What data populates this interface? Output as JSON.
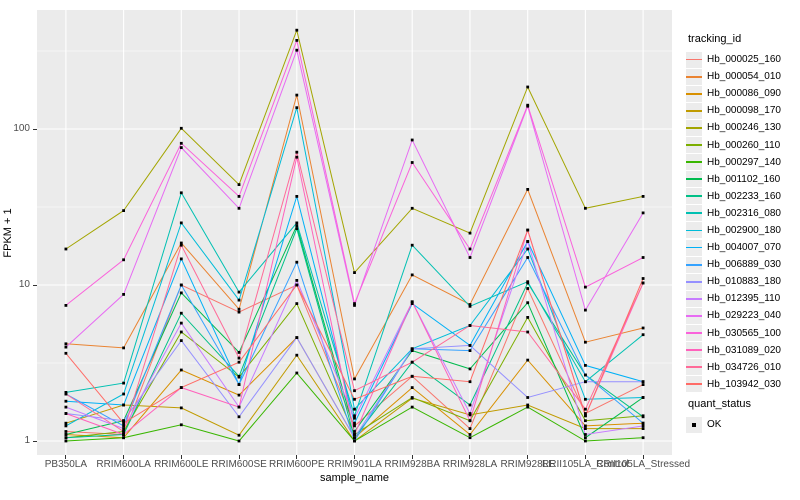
{
  "chart_data": {
    "type": "line",
    "title": "",
    "xlabel": "sample_name",
    "ylabel": "FPKM + 1",
    "y_scale": "log10",
    "y_ticks": [
      1,
      10,
      100
    ],
    "y_minor_ticks": [
      3.162,
      31.62,
      316.2
    ],
    "ylim": [
      1,
      578
    ],
    "panel_bg": "#EBEBEB",
    "grid_color": "#FFFFFF",
    "point_shape": "black-square",
    "categories": [
      "PB350LA",
      "RRIM600LA",
      "RRIM600LE",
      "RRIM600SE",
      "RRIM600PE",
      "RRIM901LA",
      "RRIM928BA",
      "RRIM928LA",
      "RRIM928LE",
      "RRII105LA_Control",
      "RRII105LA_Stressed"
    ],
    "series": [
      {
        "name": "Hb_000025_160",
        "color": "#F8766D",
        "values": [
          1.15,
          1.1,
          10.0,
          6.7,
          10.0,
          1.25,
          2.6,
          1.2,
          9.5,
          1.5,
          2.3
        ]
      },
      {
        "name": "Hb_000054_010",
        "color": "#EA8331",
        "values": [
          4.2,
          3.95,
          18.6,
          7.0,
          165,
          2.5,
          11.6,
          7.5,
          41,
          4.3,
          5.3
        ]
      },
      {
        "name": "Hb_000086_090",
        "color": "#D89000",
        "values": [
          1.1,
          1.05,
          2.85,
          1.97,
          4.6,
          1.05,
          2.2,
          1.1,
          3.3,
          1.25,
          1.3
        ]
      },
      {
        "name": "Hb_000098_170",
        "color": "#C09B00",
        "values": [
          1.3,
          1.7,
          1.63,
          1.09,
          3.55,
          1.0,
          1.88,
          1.47,
          1.7,
          1.2,
          1.2
        ]
      },
      {
        "name": "Hb_000246_130",
        "color": "#A3A500",
        "values": [
          17,
          30,
          101,
          44,
          430,
          12,
          31,
          21.5,
          186,
          31,
          37
        ]
      },
      {
        "name": "Hb_000260_110",
        "color": "#7CAE00",
        "values": [
          1.05,
          1.15,
          5.0,
          2.57,
          7.6,
          1.1,
          1.9,
          1.35,
          6.2,
          1.35,
          1.45
        ]
      },
      {
        "name": "Hb_000297_140",
        "color": "#39B600",
        "values": [
          1.0,
          1.05,
          1.27,
          1.0,
          2.73,
          1.0,
          1.65,
          1.05,
          1.65,
          1.0,
          1.05
        ]
      },
      {
        "name": "Hb_001102_160",
        "color": "#00BB4E",
        "values": [
          1.1,
          1.35,
          8.9,
          3.7,
          24,
          1.15,
          3.8,
          2.9,
          7.7,
          1.05,
          1.9
        ]
      },
      {
        "name": "Hb_002233_160",
        "color": "#00C087",
        "values": [
          1.05,
          1.1,
          6.6,
          2.6,
          23,
          1.05,
          3.2,
          1.7,
          10.3,
          2.65,
          1.43
        ]
      },
      {
        "name": "Hb_002316_080",
        "color": "#00C0B2",
        "values": [
          2.05,
          2.35,
          39,
          9.0,
          25,
          1.45,
          18,
          7.3,
          10.5,
          2.4,
          4.8
        ]
      },
      {
        "name": "Hb_002900_180",
        "color": "#00BCD8",
        "values": [
          1.25,
          2.0,
          25,
          8.0,
          137,
          1.6,
          3.9,
          5.5,
          17,
          1.85,
          1.9
        ]
      },
      {
        "name": "Hb_004007_070",
        "color": "#00B0F6",
        "values": [
          1.8,
          1.7,
          14.7,
          2.3,
          37,
          1.3,
          7.6,
          4.1,
          19,
          3.05,
          2.4
        ]
      },
      {
        "name": "Hb_006889_030",
        "color": "#35A2FF",
        "values": [
          2.0,
          1.25,
          10.0,
          2.3,
          14,
          1.0,
          3.9,
          3.8,
          15,
          2.65,
          1.3
        ]
      },
      {
        "name": "Hb_010883_180",
        "color": "#9590FF",
        "values": [
          1.5,
          1.35,
          4.4,
          1.43,
          4.6,
          1.05,
          3.9,
          4.1,
          1.9,
          2.4,
          2.4
        ]
      },
      {
        "name": "Hb_012395_110",
        "color": "#C77CFF",
        "values": [
          1.65,
          1.2,
          5.7,
          1.65,
          10.7,
          1.4,
          7.8,
          1.5,
          19,
          1.1,
          1.25
        ]
      },
      {
        "name": "Hb_029223_040",
        "color": "#E76BF3",
        "values": [
          4.0,
          8.7,
          76,
          31,
          320,
          7.4,
          85,
          15,
          140,
          6.9,
          29
        ]
      },
      {
        "name": "Hb_030565_100",
        "color": "#FA62DB",
        "values": [
          7.4,
          14.5,
          81,
          37,
          370,
          7.6,
          61,
          17,
          142,
          9.7,
          15
        ]
      },
      {
        "name": "Hb_031089_020",
        "color": "#FF62BC",
        "values": [
          1.5,
          1.1,
          2.2,
          1.65,
          66,
          1.1,
          7.8,
          1.35,
          22.5,
          1.45,
          10.3
        ]
      },
      {
        "name": "Hb_034726_010",
        "color": "#FF6A98",
        "values": [
          2.0,
          1.15,
          18,
          3.4,
          71,
          2.1,
          3.2,
          5.5,
          5.0,
          1.6,
          10.3
        ]
      },
      {
        "name": "Hb_103942_030",
        "color": "#FF6C67",
        "values": [
          3.65,
          1.3,
          2.2,
          3.2,
          10,
          1.85,
          2.6,
          2.4,
          22.5,
          1.45,
          11
        ]
      }
    ],
    "legend_position": "right"
  },
  "legend": {
    "title": "tracking_id"
  },
  "legend2": {
    "title": "quant_status",
    "items": [
      {
        "label": "OK",
        "color": "#000000",
        "shape": "square"
      }
    ]
  },
  "axes": {
    "x_title": "sample_name",
    "y_title": "FPKM + 1",
    "y_tick_labels": [
      "100",
      "10",
      "1"
    ]
  }
}
